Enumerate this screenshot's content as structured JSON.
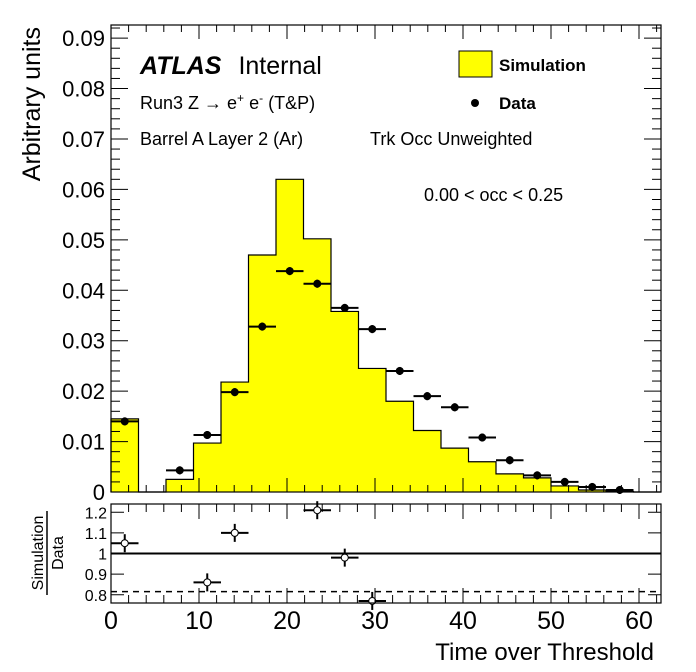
{
  "chart_data": {
    "type": "bar",
    "title": "",
    "xlabel": "Time over Threshold",
    "ylabel": "Arbitrary units",
    "xlim": [
      0,
      62.5
    ],
    "ylim": [
      0,
      0.0926
    ],
    "x_ticks": [
      "0",
      "10",
      "20",
      "30",
      "40",
      "50",
      "60"
    ],
    "y_ticks": [
      "0",
      "0.01",
      "0.02",
      "0.03",
      "0.04",
      "0.05",
      "0.06",
      "0.07",
      "0.08",
      "0.09"
    ],
    "bin_edges": [
      0,
      3.125,
      6.25,
      9.375,
      12.5,
      15.625,
      18.75,
      21.875,
      25,
      28.125,
      31.25,
      34.375,
      37.5,
      40.625,
      43.75,
      46.875,
      50,
      53.125,
      56.25,
      59.375,
      62.5
    ],
    "series": [
      {
        "name": "Simulation",
        "style": "filled-histogram",
        "color": "#ffff00",
        "values": [
          0.0145,
          0,
          0.0025,
          0.0097,
          0.0218,
          0.047,
          0.062,
          0.0502,
          0.0358,
          0.0245,
          0.018,
          0.0122,
          0.0087,
          0.006,
          0.0036,
          0.0028,
          0.0012,
          0.0004,
          0.0001,
          0
        ]
      },
      {
        "name": "Data",
        "style": "points",
        "color": "#000000",
        "values": [
          0.014,
          null,
          0.0043,
          0.0113,
          0.0198,
          0.0328,
          0.0438,
          0.0413,
          0.0365,
          0.0323,
          0.024,
          0.019,
          0.0168,
          0.0108,
          0.0063,
          0.0033,
          0.002,
          0.001,
          0.0004,
          null
        ]
      }
    ],
    "legend": {
      "placement": "top-right",
      "entries": [
        "Simulation",
        "Data"
      ]
    },
    "annotations": {
      "experiment": "ATLAS",
      "status": "Internal",
      "process_prefix": "Run3 Z ",
      "arrow": "→",
      "e1": "e",
      "sup1": "+",
      "e2": " e",
      "sup2": "-",
      "process_suffix": " (T&P)",
      "region": "Barrel A Layer 2 (Ar)",
      "weighting": "Trk Occ Unweighted",
      "occupancy_range": "0.00 < occ < 0.25"
    },
    "ratio_panel": {
      "ylabel_numerator": "Simulation",
      "ylabel_denominator": "Data",
      "ylim": [
        0.76,
        1.24
      ],
      "y_ticks": [
        "0.8",
        "0.9",
        "1",
        "1.1",
        "1.2"
      ],
      "reference_line": 1.0,
      "dashed_line": 0.815,
      "points": [
        {
          "bin": 1,
          "value": 1.05
        },
        {
          "bin": 4,
          "value": 0.86
        },
        {
          "bin": 5,
          "value": 1.1
        },
        {
          "bin": 8,
          "value": 1.21
        },
        {
          "bin": 9,
          "value": 0.98
        },
        {
          "bin": 10,
          "value": 0.77
        }
      ]
    }
  }
}
